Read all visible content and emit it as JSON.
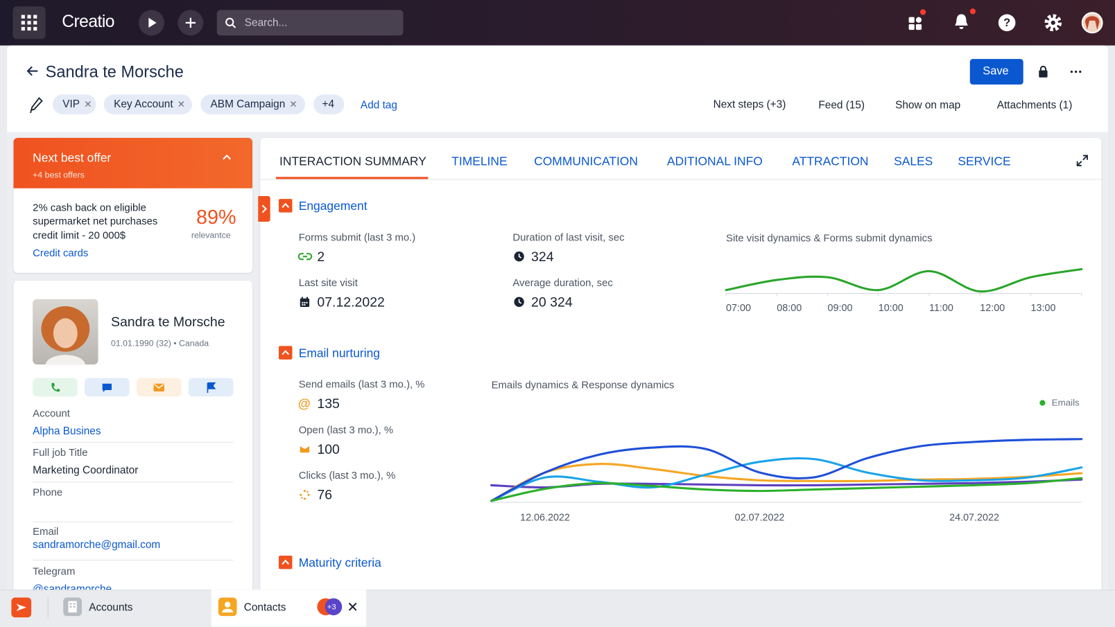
{
  "topbar": {
    "brand": "Creatio",
    "search_placeholder": "Search..."
  },
  "header": {
    "title": "Sandra te Morsche",
    "save": "Save",
    "tags": [
      "VIP",
      "Key Account",
      "ABM Campaign",
      "+4"
    ],
    "add_tag": "Add tag",
    "links": [
      "Next steps (+3)",
      "Feed (15)",
      "Show on map",
      "Attachments (1)"
    ]
  },
  "offer": {
    "title": "Next best offer",
    "subtitle": "+4 best offers",
    "text_lines": [
      "2% cash back on eligible",
      "supermarket net purchases",
      "credit limit - 20 000$"
    ],
    "relevance": "89%",
    "relevance_label": "relevantce",
    "link": "Credit cards"
  },
  "profile": {
    "name": "Sandra te Morsche",
    "meta": "01.01.1990 (32) • Canada",
    "fields": [
      {
        "label": "Account",
        "value": "Alpha Busines"
      },
      {
        "label": "Full job Title",
        "value": "Marketing Coordinator"
      },
      {
        "label": "Phone"
      },
      {
        "label": "Email",
        "value": "sandramorche@gmail.com"
      },
      {
        "label": "Telegram",
        "value": "@sandramorche"
      }
    ]
  },
  "tabs": [
    "INTERACTION SUMMARY",
    "TIMELINE",
    "COMMUNICATION",
    "ADITIONAL INFO",
    "ATTRACTION",
    "SALES",
    "SERVICE"
  ],
  "engagement": {
    "title": "Engagement",
    "metrics": [
      {
        "label": "Forms submit (last 3 mo.)",
        "value": "2"
      },
      {
        "label": "Duration of last visit, sec",
        "value": "324"
      },
      {
        "label": "Last site visit",
        "value": "07.12.2022"
      },
      {
        "label": "Average duration, sec",
        "value": "20 324"
      }
    ],
    "chart_data": {
      "type": "line",
      "title": "Site visit dynamics & Forms submit dynamics",
      "categories": [
        "07:00",
        "08:00",
        "09:00",
        "10:00",
        "11:00",
        "12:00",
        "13:00",
        null
      ],
      "series": [
        {
          "color": "#2ba52b",
          "values": [
            5,
            20,
            24,
            5,
            33,
            3,
            24,
            36
          ]
        }
      ],
      "ylim": [
        0,
        40
      ]
    }
  },
  "email_nurturing": {
    "title": "Email nurturing",
    "metrics": [
      {
        "label": "Send emails (last 3 mo.), %",
        "value": "135"
      },
      {
        "label": "Open (last 3 mo.), %",
        "value": "100"
      },
      {
        "label": "Clicks (last 3 mo.), %",
        "value": "76"
      }
    ],
    "chart_data": {
      "type": "line",
      "title": "Emails dynamics & Response dynamics",
      "categories": [
        null,
        "12.06.2022",
        null,
        null,
        null,
        "02.07.2022",
        null,
        null,
        null,
        "24.07.2022",
        null,
        null
      ],
      "series": [
        {
          "color": "#5b3fbf",
          "values": [
            24,
            21,
            26,
            26,
            25,
            24,
            24,
            25,
            26,
            27,
            29,
            32
          ]
        },
        {
          "color": "#f5a623",
          "values": [
            2,
            42,
            54,
            47,
            37,
            31,
            30,
            30,
            32,
            33,
            36,
            41
          ]
        },
        {
          "color": "#1aa3e8",
          "values": [
            2,
            35,
            29,
            21,
            39,
            57,
            61,
            42,
            31,
            31,
            35,
            49
          ]
        },
        {
          "color": "#1f4fd8",
          "values": [
            2,
            42,
            67,
            77,
            75,
            42,
            35,
            62,
            79,
            85,
            88,
            89
          ]
        },
        {
          "name": "Emails",
          "color": "#2bb02b",
          "values": [
            2,
            19,
            27,
            23,
            18,
            16,
            18,
            20,
            22,
            24,
            27,
            34
          ]
        }
      ],
      "ylim": [
        0,
        100
      ]
    }
  },
  "maturity": {
    "title": "Maturity criteria"
  },
  "taskbar": {
    "items": [
      "Accounts",
      "Contacts"
    ],
    "badge": "+3"
  }
}
